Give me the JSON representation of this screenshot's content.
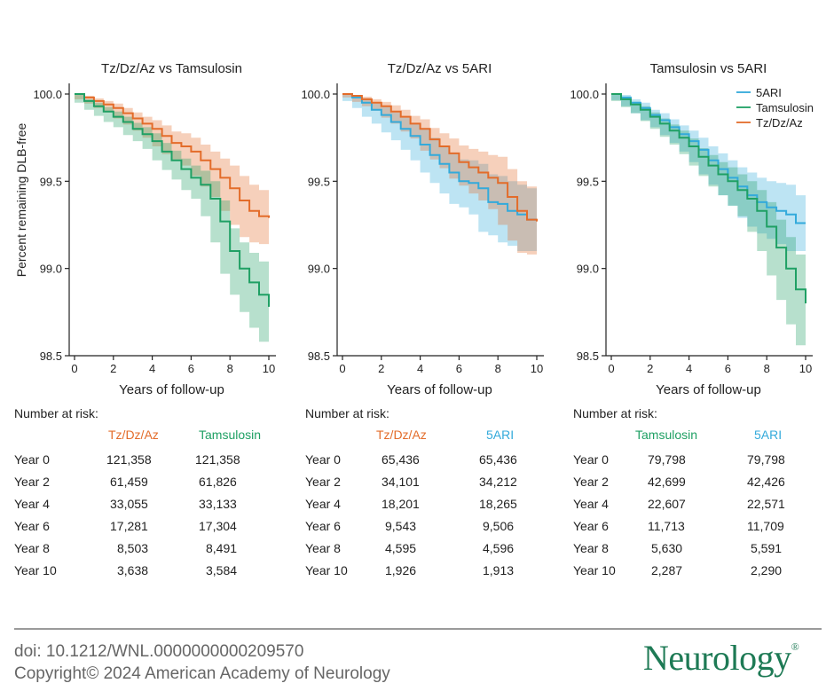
{
  "colors": {
    "tamsulosin": "#1fa064",
    "tz": "#e36c2a",
    "ari": "#33aadb"
  },
  "chart_data": [
    {
      "type": "line",
      "title": "Tz/Dz/Az vs Tamsulosin",
      "xlabel": "Years of follow-up",
      "ylabel": "Percent remaining DLB-free",
      "xlim": [
        0,
        10
      ],
      "ylim": [
        98.5,
        100.0
      ],
      "xticks": [
        "0",
        "2",
        "4",
        "6",
        "8",
        "10"
      ],
      "yticks": [
        "100.0",
        "99.5",
        "99.0",
        "98.5"
      ],
      "legend": [],
      "series": [
        {
          "name": "Tz/Dz/Az",
          "color_key": "tz",
          "x": [
            0,
            0.5,
            1,
            1.5,
            2,
            2.5,
            3,
            3.5,
            4,
            4.5,
            5,
            5.5,
            6,
            6.5,
            7,
            7.5,
            8,
            8.5,
            9,
            9.5,
            10
          ],
          "y": [
            100.0,
            99.98,
            99.96,
            99.94,
            99.92,
            99.89,
            99.86,
            99.83,
            99.8,
            99.76,
            99.72,
            99.7,
            99.67,
            99.62,
            99.57,
            99.52,
            99.46,
            99.39,
            99.33,
            99.3,
            99.29
          ],
          "lower": [
            100.0,
            99.97,
            99.945,
            99.92,
            99.895,
            99.86,
            99.825,
            99.79,
            99.75,
            99.7,
            99.655,
            99.625,
            99.59,
            99.53,
            99.47,
            99.41,
            99.33,
            99.25,
            99.18,
            99.15,
            99.14
          ],
          "upper": [
            100.0,
            99.99,
            99.975,
            99.96,
            99.945,
            99.92,
            99.895,
            99.87,
            99.85,
            99.82,
            99.785,
            99.775,
            99.75,
            99.71,
            99.67,
            99.63,
            99.59,
            99.53,
            99.48,
            99.45,
            99.44
          ]
        },
        {
          "name": "Tamsulosin",
          "color_key": "tamsulosin",
          "x": [
            0,
            0.5,
            1,
            1.5,
            2,
            2.5,
            3,
            3.5,
            4,
            4.5,
            5,
            5.5,
            6,
            6.5,
            7,
            7.5,
            8,
            8.5,
            9,
            9.5,
            10
          ],
          "y": [
            100.0,
            99.96,
            99.93,
            99.9,
            99.87,
            99.84,
            99.8,
            99.77,
            99.73,
            99.67,
            99.62,
            99.57,
            99.52,
            99.48,
            99.4,
            99.27,
            99.1,
            99.0,
            98.92,
            98.85,
            98.78
          ],
          "lower": [
            100.0,
            99.95,
            99.91,
            99.875,
            99.84,
            99.81,
            99.765,
            99.73,
            99.685,
            99.62,
            99.565,
            99.51,
            99.45,
            99.4,
            99.3,
            99.15,
            98.97,
            98.85,
            98.75,
            98.66,
            98.58
          ],
          "upper": [
            100.0,
            99.97,
            99.95,
            99.925,
            99.9,
            99.87,
            99.835,
            99.81,
            99.775,
            99.72,
            99.675,
            99.63,
            99.59,
            99.56,
            99.5,
            99.39,
            99.23,
            99.15,
            99.09,
            99.04,
            98.98
          ]
        }
      ]
    },
    {
      "type": "line",
      "title": "Tz/Dz/Az vs 5ARI",
      "xlabel": "Years of follow-up",
      "ylabel": "",
      "xlim": [
        0,
        10
      ],
      "ylim": [
        98.5,
        100.0
      ],
      "xticks": [
        "0",
        "2",
        "4",
        "6",
        "8",
        "10"
      ],
      "yticks": [
        "100.0",
        "99.5",
        "99.0",
        "98.5"
      ],
      "legend": [],
      "series": [
        {
          "name": "5ARI",
          "color_key": "ari",
          "x": [
            0,
            0.5,
            1,
            1.5,
            2,
            2.5,
            3,
            3.5,
            4,
            4.5,
            5,
            5.5,
            6,
            6.5,
            7,
            7.5,
            8,
            8.5,
            9,
            9.5,
            10
          ],
          "y": [
            100.0,
            99.98,
            99.95,
            99.91,
            99.88,
            99.84,
            99.8,
            99.76,
            99.71,
            99.65,
            99.6,
            99.55,
            99.5,
            99.49,
            99.46,
            99.38,
            99.37,
            99.33,
            99.31,
            99.28,
            99.28
          ],
          "lower": [
            100.0,
            99.96,
            99.92,
            99.87,
            99.83,
            99.78,
            99.735,
            99.68,
            99.62,
            99.55,
            99.49,
            99.43,
            99.37,
            99.35,
            99.31,
            99.21,
            99.19,
            99.15,
            99.13,
            99.1,
            99.1
          ],
          "upper": [
            100.0,
            99.99,
            99.975,
            99.945,
            99.925,
            99.895,
            99.865,
            99.835,
            99.8,
            99.75,
            99.705,
            99.665,
            99.625,
            99.62,
            99.6,
            99.54,
            99.53,
            99.5,
            99.48,
            99.46,
            99.46
          ]
        },
        {
          "name": "Tz/Dz/Az",
          "color_key": "tz",
          "x": [
            0,
            0.5,
            1,
            1.5,
            2,
            2.5,
            3,
            3.5,
            4,
            4.5,
            5,
            5.5,
            6,
            6.5,
            7,
            7.5,
            8,
            8.5,
            9,
            9.5,
            10
          ],
          "y": [
            100.0,
            99.99,
            99.97,
            99.95,
            99.93,
            99.9,
            99.87,
            99.83,
            99.8,
            99.74,
            99.7,
            99.66,
            99.61,
            99.58,
            99.55,
            99.52,
            99.49,
            99.41,
            99.33,
            99.28,
            99.27
          ],
          "lower": [
            100.0,
            99.98,
            99.955,
            99.93,
            99.905,
            99.865,
            99.83,
            99.785,
            99.745,
            99.675,
            99.625,
            99.575,
            99.515,
            99.475,
            99.43,
            99.39,
            99.34,
            99.25,
            99.16,
            99.09,
            99.08
          ],
          "upper": [
            100.0,
            99.995,
            99.985,
            99.97,
            99.955,
            99.935,
            99.91,
            99.875,
            99.855,
            99.805,
            99.775,
            99.745,
            99.705,
            99.685,
            99.67,
            99.65,
            99.64,
            99.57,
            99.5,
            99.47,
            99.46
          ]
        }
      ]
    },
    {
      "type": "line",
      "title": "Tamsulosin vs 5ARI",
      "xlabel": "Years of follow-up",
      "ylabel": "",
      "xlim": [
        0,
        10
      ],
      "ylim": [
        98.5,
        100.0
      ],
      "xticks": [
        "0",
        "2",
        "4",
        "6",
        "8",
        "10"
      ],
      "yticks": [
        "100.0",
        "99.5",
        "99.0",
        "98.5"
      ],
      "legend": [
        "5ARI",
        "Tamsulosin",
        "Tz/Dz/Az"
      ],
      "legend_colors": [
        "ari",
        "tamsulosin",
        "tz"
      ],
      "series": [
        {
          "name": "5ARI",
          "color_key": "ari",
          "x": [
            0,
            0.5,
            1,
            1.5,
            2,
            2.5,
            3,
            3.5,
            4,
            4.5,
            5,
            5.5,
            6,
            6.5,
            7,
            7.5,
            8,
            8.5,
            9,
            9.5,
            10
          ],
          "y": [
            100.0,
            99.98,
            99.95,
            99.92,
            99.88,
            99.85,
            99.81,
            99.77,
            99.73,
            99.68,
            99.62,
            99.57,
            99.52,
            99.47,
            99.42,
            99.38,
            99.35,
            99.33,
            99.31,
            99.26,
            99.26
          ],
          "lower": [
            100.0,
            99.965,
            99.93,
            99.89,
            99.85,
            99.81,
            99.765,
            99.72,
            99.67,
            99.61,
            99.54,
            99.48,
            99.42,
            99.36,
            99.29,
            99.24,
            99.2,
            99.17,
            99.14,
            99.1,
            99.1
          ],
          "upper": [
            100.0,
            99.995,
            99.97,
            99.95,
            99.91,
            99.89,
            99.855,
            99.82,
            99.79,
            99.75,
            99.7,
            99.66,
            99.62,
            99.58,
            99.55,
            99.52,
            99.5,
            99.49,
            99.48,
            99.42,
            99.42
          ]
        },
        {
          "name": "Tamsulosin",
          "color_key": "tamsulosin",
          "x": [
            0,
            0.5,
            1,
            1.5,
            2,
            2.5,
            3,
            3.5,
            4,
            4.5,
            5,
            5.5,
            6,
            6.5,
            7,
            7.5,
            8,
            8.5,
            9,
            9.5,
            10
          ],
          "y": [
            100.0,
            99.97,
            99.94,
            99.91,
            99.87,
            99.83,
            99.79,
            99.75,
            99.7,
            99.64,
            99.59,
            99.54,
            99.5,
            99.45,
            99.4,
            99.33,
            99.24,
            99.12,
            99.0,
            98.88,
            98.8
          ],
          "lower": [
            100.0,
            99.96,
            99.925,
            99.89,
            99.845,
            99.8,
            99.755,
            99.71,
            99.655,
            99.59,
            99.53,
            99.47,
            99.42,
            99.36,
            99.3,
            99.21,
            99.1,
            98.96,
            98.82,
            98.68,
            98.56
          ],
          "upper": [
            100.0,
            99.98,
            99.955,
            99.93,
            99.895,
            99.86,
            99.825,
            99.79,
            99.745,
            99.69,
            99.65,
            99.61,
            99.58,
            99.54,
            99.5,
            99.45,
            99.38,
            99.28,
            99.18,
            99.08,
            99.02
          ]
        }
      ]
    }
  ],
  "risk_tables": [
    {
      "title": "Number at risk:",
      "col1": "Tz/Dz/Az",
      "col1_color": "tz",
      "col2": "Tamsulosin",
      "col2_color": "tamsulosin",
      "rows": [
        {
          "label": "Year 0",
          "v1": "121,358",
          "v2": "121,358"
        },
        {
          "label": "Year 2",
          "v1": "61,459",
          "v2": "61,826"
        },
        {
          "label": "Year 4",
          "v1": "33,055",
          "v2": "33,133"
        },
        {
          "label": "Year 6",
          "v1": "17,281",
          "v2": "17,304"
        },
        {
          "label": "Year 8",
          "v1": "8,503",
          "v2": "8,491"
        },
        {
          "label": "Year 10",
          "v1": "3,638",
          "v2": "3,584"
        }
      ]
    },
    {
      "title": "Number at risk:",
      "col1": "Tz/Dz/Az",
      "col1_color": "tz",
      "col2": "5ARI",
      "col2_color": "ari",
      "rows": [
        {
          "label": "Year 0",
          "v1": "65,436",
          "v2": "65,436"
        },
        {
          "label": "Year 2",
          "v1": "34,101",
          "v2": "34,212"
        },
        {
          "label": "Year 4",
          "v1": "18,201",
          "v2": "18,265"
        },
        {
          "label": "Year 6",
          "v1": "9,543",
          "v2": "9,506"
        },
        {
          "label": "Year 8",
          "v1": "4,595",
          "v2": "4,596"
        },
        {
          "label": "Year 10",
          "v1": "1,926",
          "v2": "1,913"
        }
      ]
    },
    {
      "title": "Number at risk:",
      "col1": "Tamsulosin",
      "col1_color": "tamsulosin",
      "col2": "5ARI",
      "col2_color": "ari",
      "rows": [
        {
          "label": "Year 0",
          "v1": "79,798",
          "v2": "79,798"
        },
        {
          "label": "Year 2",
          "v1": "42,699",
          "v2": "42,426"
        },
        {
          "label": "Year 4",
          "v1": "22,607",
          "v2": "22,571"
        },
        {
          "label": "Year 6",
          "v1": "11,713",
          "v2": "11,709"
        },
        {
          "label": "Year 8",
          "v1": "5,630",
          "v2": "5,591"
        },
        {
          "label": "Year 10",
          "v1": "2,287",
          "v2": "2,290"
        }
      ]
    }
  ],
  "footer": {
    "doi": "doi: 10.1212/WNL.0000000000209570",
    "copyright": "Copyright© 2024 American Academy of Neurology",
    "logo": "Neurology",
    "logo_mark": "®"
  }
}
